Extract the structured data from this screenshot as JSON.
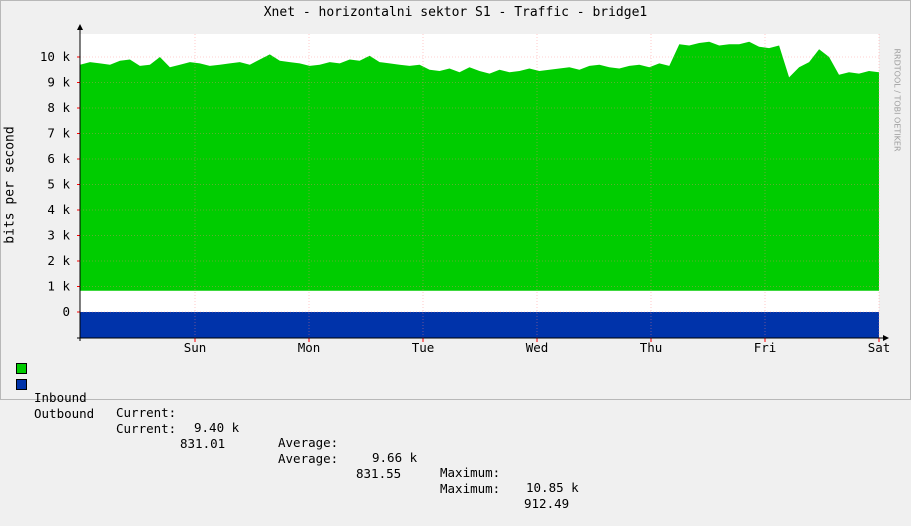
{
  "chart_data": {
    "type": "area",
    "title": "Xnet - horizontalni sektor S1 - Traffic - bridge1",
    "ylabel": "bits per second",
    "watermark": "RRDTOOL / TOBI OETIKER",
    "yticks": [
      "0",
      "1 k",
      "2 k",
      "3 k",
      "4 k",
      "5 k",
      "6 k",
      "7 k",
      "8 k",
      "9 k",
      "10 k"
    ],
    "xticks": [
      "Sun",
      "Mon",
      "Tue",
      "Wed",
      "Thu",
      "Fri",
      "Sat"
    ],
    "series": [
      {
        "name": "Inbound",
        "color": "#00cc00",
        "current": "9.40 k",
        "average": "9.66 k",
        "maximum": "10.85 k",
        "baseline": 831,
        "values": [
          9700,
          9800,
          9750,
          9700,
          9850,
          9900,
          9650,
          9700,
          10000,
          9600,
          9700,
          9800,
          9750,
          9650,
          9700,
          9750,
          9800,
          9700,
          9900,
          10100,
          9850,
          9800,
          9750,
          9650,
          9700,
          9800,
          9750,
          9900,
          9850,
          10050,
          9800,
          9750,
          9700,
          9650,
          9700,
          9500,
          9450,
          9550,
          9400,
          9600,
          9450,
          9350,
          9500,
          9400,
          9450,
          9550,
          9450,
          9500,
          9550,
          9600,
          9500,
          9650,
          9700,
          9600,
          9550,
          9650,
          9700,
          9600,
          9750,
          9650,
          10500,
          10450,
          10550,
          10600,
          10450,
          10500,
          10500,
          10600,
          10400,
          10350,
          10450,
          9200,
          9600,
          9800,
          10300,
          10000,
          9300,
          9400,
          9350,
          9450,
          9400
        ]
      },
      {
        "name": "Outbound",
        "color": "#0033aa",
        "current": "831.01",
        "average": "831.55",
        "maximum": "912.49"
      }
    ],
    "legend_labels": {
      "current": "Current:",
      "average": "Average:",
      "maximum": "Maximum:"
    },
    "ylim": [
      0,
      11000
    ],
    "grid": true
  }
}
